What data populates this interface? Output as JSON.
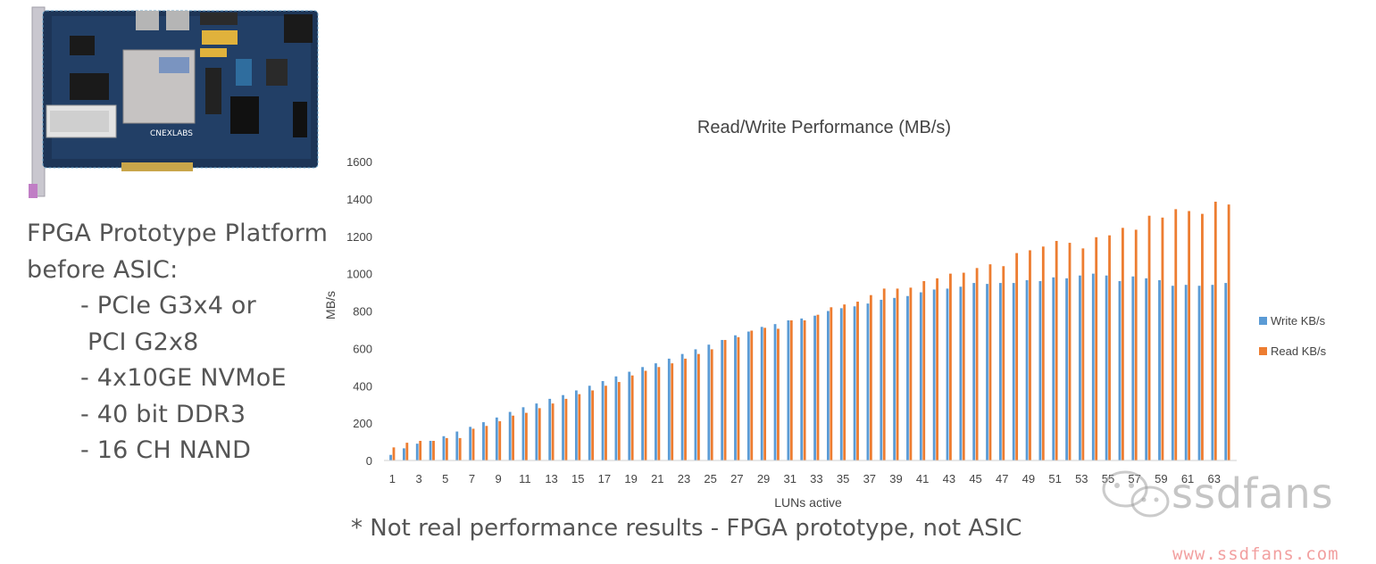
{
  "spec": {
    "heading1": "FPGA Prototype Platform",
    "heading2": "before ASIC:",
    "items": [
      "- PCIe G3x4 or",
      "PCI G2x8",
      "- 4x10GE NVMoE",
      "- 40 bit DDR3",
      "- 16 CH NAND"
    ]
  },
  "board": {
    "logo_text": "CNEXLABS"
  },
  "note": "* Not real performance results - FPGA prototype, not ASIC",
  "watermark": {
    "brand": "ssdfans",
    "url": "www.ssdfans.com"
  },
  "colors": {
    "write": "#5B9BD5",
    "read": "#ED7D31",
    "axis_text": "#444444"
  },
  "chart_data": {
    "type": "bar",
    "title": "Read/Write Performance (MB/s)",
    "xlabel": "LUNs active",
    "ylabel": "MB/s",
    "ylim": [
      0,
      1600
    ],
    "yticks": [
      0,
      200,
      400,
      600,
      800,
      1000,
      1200,
      1400,
      1600
    ],
    "categories": [
      1,
      2,
      3,
      4,
      5,
      6,
      7,
      8,
      9,
      10,
      11,
      12,
      13,
      14,
      15,
      16,
      17,
      18,
      19,
      20,
      21,
      22,
      23,
      24,
      25,
      26,
      27,
      28,
      29,
      30,
      31,
      32,
      33,
      34,
      35,
      36,
      37,
      38,
      39,
      40,
      41,
      42,
      43,
      44,
      45,
      46,
      47,
      48,
      49,
      50,
      51,
      52,
      53,
      54,
      55,
      56,
      57,
      58,
      59,
      60,
      61,
      62,
      63,
      64
    ],
    "xtick_labels": [
      "1",
      "3",
      "5",
      "7",
      "9",
      "11",
      "13",
      "15",
      "17",
      "19",
      "21",
      "23",
      "25",
      "27",
      "29",
      "31",
      "33",
      "35",
      "37",
      "39",
      "41",
      "43",
      "45",
      "47",
      "49",
      "51",
      "53",
      "55",
      "57",
      "59",
      "61",
      "63"
    ],
    "legend_position": "right",
    "series": [
      {
        "name": "Write KB/s",
        "values": [
          30,
          65,
          90,
          105,
          130,
          155,
          180,
          205,
          230,
          260,
          285,
          305,
          330,
          350,
          375,
          400,
          425,
          450,
          475,
          500,
          520,
          545,
          570,
          595,
          620,
          645,
          670,
          690,
          715,
          730,
          750,
          760,
          775,
          800,
          815,
          825,
          840,
          860,
          870,
          880,
          900,
          915,
          920,
          930,
          950,
          945,
          950,
          950,
          965,
          960,
          980,
          975,
          990,
          1000,
          990,
          960,
          985,
          975,
          965,
          935,
          940,
          935,
          940,
          950
        ]
      },
      {
        "name": "Read KB/s",
        "values": [
          70,
          95,
          105,
          105,
          120,
          120,
          170,
          185,
          210,
          240,
          255,
          280,
          305,
          330,
          355,
          375,
          400,
          420,
          455,
          480,
          500,
          520,
          545,
          570,
          595,
          645,
          660,
          695,
          710,
          705,
          750,
          750,
          780,
          820,
          835,
          850,
          885,
          920,
          920,
          925,
          960,
          975,
          1000,
          1005,
          1030,
          1050,
          1040,
          1110,
          1125,
          1145,
          1175,
          1165,
          1135,
          1195,
          1205,
          1245,
          1235,
          1310,
          1300,
          1345,
          1335,
          1320,
          1385,
          1370
        ]
      }
    ]
  }
}
